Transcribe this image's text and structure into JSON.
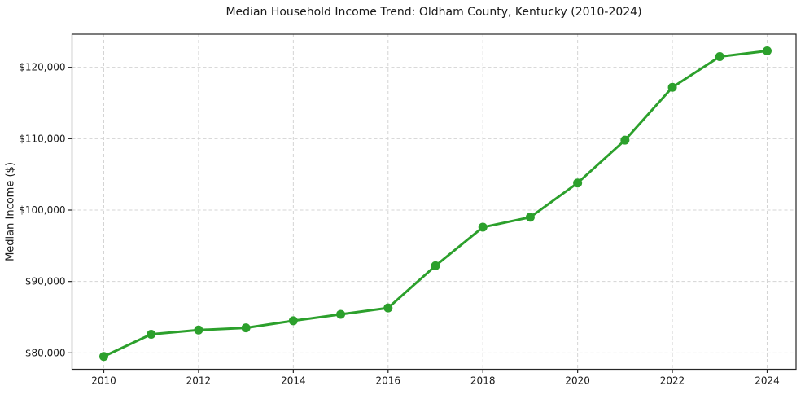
{
  "chart_data": {
    "type": "line",
    "title": "Median Household Income Trend: Oldham County, Kentucky (2010-2024)",
    "xlabel": "",
    "ylabel": "Median Income ($)",
    "x": [
      2010,
      2011,
      2012,
      2013,
      2014,
      2015,
      2016,
      2017,
      2018,
      2019,
      2020,
      2021,
      2022,
      2023,
      2024
    ],
    "values": [
      79500,
      82600,
      83200,
      83500,
      84500,
      85400,
      86300,
      92200,
      97600,
      99000,
      103800,
      109800,
      117200,
      121500,
      122300
    ],
    "xticks": [
      2010,
      2012,
      2014,
      2016,
      2018,
      2020,
      2022,
      2024
    ],
    "xtick_labels": [
      "2010",
      "2012",
      "2014",
      "2016",
      "2018",
      "2020",
      "2022",
      "2024"
    ],
    "yticks": [
      80000,
      90000,
      100000,
      110000,
      120000
    ],
    "ytick_labels": [
      "$80,000",
      "$90,000",
      "$100,000",
      "$110,000",
      "$120,000"
    ],
    "xlim": [
      2009.33,
      2024.61
    ],
    "ylim": [
      77700,
      124640
    ],
    "grid": true,
    "legend": "none",
    "style": {
      "line_color": "#2ca02c",
      "marker": "circle",
      "grid_color": "#d4d4d4",
      "spine_color": "#262626",
      "text_color": "#1a1a1a",
      "background": "#ffffff"
    }
  }
}
